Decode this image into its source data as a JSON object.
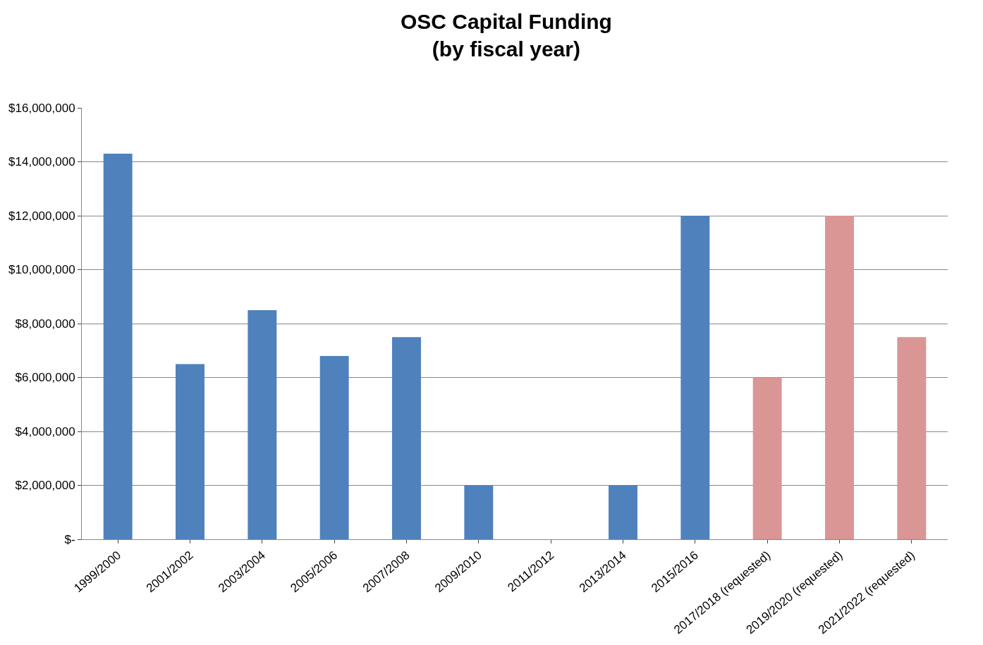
{
  "chart_data": {
    "type": "bar",
    "title": "OSC Capital Funding\n(by fiscal year)",
    "categories": [
      "1999/2000",
      "2001/2002",
      "2003/2004",
      "2005/2006",
      "2007/2008",
      "2009/2010",
      "2011/2012",
      "2013/2014",
      "2015/2016",
      "2017/2018 (requested)",
      "2019/2020 (requested)",
      "2021/2022 (requested)"
    ],
    "values": [
      14300000,
      6500000,
      8500000,
      6800000,
      7500000,
      2000000,
      0,
      2000000,
      12000000,
      6000000,
      12000000,
      7500000
    ],
    "colors": [
      "#4f81bd",
      "#4f81bd",
      "#4f81bd",
      "#4f81bd",
      "#4f81bd",
      "#4f81bd",
      "#4f81bd",
      "#4f81bd",
      "#4f81bd",
      "#d99694",
      "#d99694",
      "#d99694"
    ],
    "ylim": [
      0,
      16000000
    ],
    "yticks": [
      {
        "value": 0,
        "label": "$-"
      },
      {
        "value": 2000000,
        "label": "$2,000,000"
      },
      {
        "value": 4000000,
        "label": "$4,000,000"
      },
      {
        "value": 6000000,
        "label": "$6,000,000"
      },
      {
        "value": 8000000,
        "label": "$8,000,000"
      },
      {
        "value": 10000000,
        "label": "$10,000,000"
      },
      {
        "value": 12000000,
        "label": "$12,000,000"
      },
      {
        "value": 14000000,
        "label": "$14,000,000"
      },
      {
        "value": 16000000,
        "label": "$16,000,000"
      }
    ],
    "grid": "y"
  }
}
